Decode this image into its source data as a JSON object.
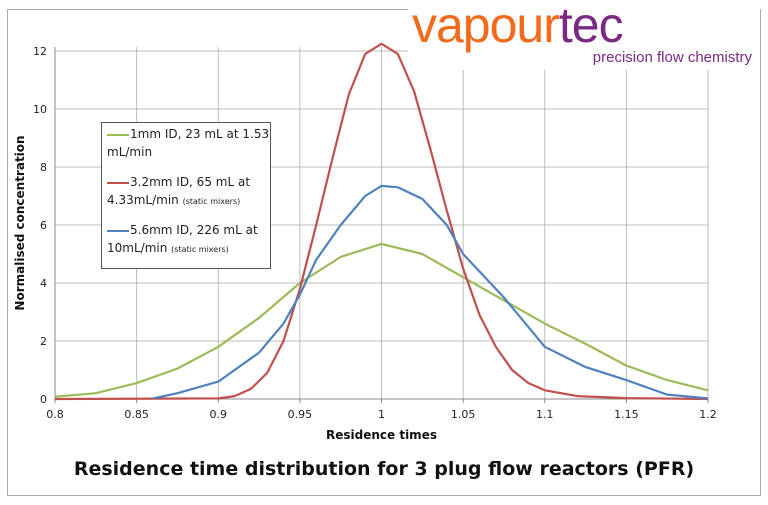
{
  "logo": {
    "word_part1": "vapour",
    "word_part2": "tec",
    "tagline": "precision flow chemistry",
    "colors": {
      "vapour": "#f26b1d",
      "tec": "#7b2a83"
    }
  },
  "chart_data": {
    "type": "line",
    "title": "Residence time distribution for 3 plug flow reactors (PFR)",
    "xlabel": "Residence times",
    "ylabel": "Normalised concentration",
    "xlim": [
      0.8,
      1.2
    ],
    "ylim": [
      0,
      12.5
    ],
    "xticks": [
      "0.8",
      "0.85",
      "0.9",
      "0.95",
      "1",
      "1.05",
      "1.1",
      "1.15",
      "1.2"
    ],
    "yticks": [
      "0",
      "2",
      "4",
      "6",
      "8",
      "10",
      "12"
    ],
    "grid": true,
    "legend_position": "left",
    "series": [
      {
        "name": "1mm ID, 23 mL at 1.53 mL/min",
        "color": "#9bbb59",
        "x": [
          0.8,
          0.825,
          0.85,
          0.875,
          0.9,
          0.925,
          0.95,
          0.975,
          1.0,
          1.025,
          1.05,
          1.075,
          1.1,
          1.125,
          1.15,
          1.175,
          1.2
        ],
        "y": [
          0.08,
          0.2,
          0.55,
          1.05,
          1.8,
          2.8,
          4.0,
          4.9,
          5.35,
          5.0,
          4.2,
          3.4,
          2.6,
          1.9,
          1.15,
          0.65,
          0.3
        ]
      },
      {
        "name": "3.2mm ID, 65 mL at 4.33mL/min (static mixers)",
        "color": "#c0504d",
        "x": [
          0.8,
          0.9,
          0.91,
          0.92,
          0.93,
          0.94,
          0.95,
          0.96,
          0.97,
          0.98,
          0.99,
          1.0,
          1.01,
          1.02,
          1.03,
          1.04,
          1.05,
          1.06,
          1.07,
          1.08,
          1.09,
          1.1,
          1.12,
          1.15,
          1.2
        ],
        "y": [
          0,
          0.02,
          0.1,
          0.35,
          0.9,
          2.0,
          3.8,
          6.0,
          8.3,
          10.5,
          11.9,
          12.25,
          11.9,
          10.6,
          8.6,
          6.5,
          4.5,
          2.9,
          1.8,
          1.0,
          0.55,
          0.3,
          0.1,
          0.03,
          0
        ]
      },
      {
        "name": "5.6mm ID, 226 mL at 10mL/min (static mixers)",
        "color": "#4f81bd",
        "x": [
          0.86,
          0.875,
          0.9,
          0.925,
          0.94,
          0.95,
          0.96,
          0.975,
          0.99,
          1.0,
          1.01,
          1.025,
          1.04,
          1.05,
          1.075,
          1.1,
          1.125,
          1.15,
          1.175,
          1.2
        ],
        "y": [
          0.02,
          0.2,
          0.6,
          1.6,
          2.6,
          3.6,
          4.8,
          6.0,
          7.0,
          7.35,
          7.3,
          6.9,
          6.0,
          5.0,
          3.5,
          1.8,
          1.1,
          0.65,
          0.15,
          0.02
        ]
      }
    ]
  },
  "legend": {
    "items": [
      {
        "line1": "1mm ID, 23 mL at 1.53",
        "line2": "mL/min",
        "note": ""
      },
      {
        "line1": "3.2mm ID, 65 mL at",
        "line2": "4.33mL/min",
        "note": "(static mixers)"
      },
      {
        "line1": "5.6mm ID, 226 mL at",
        "line2": "10mL/min",
        "note": "(static mixers)"
      }
    ]
  }
}
